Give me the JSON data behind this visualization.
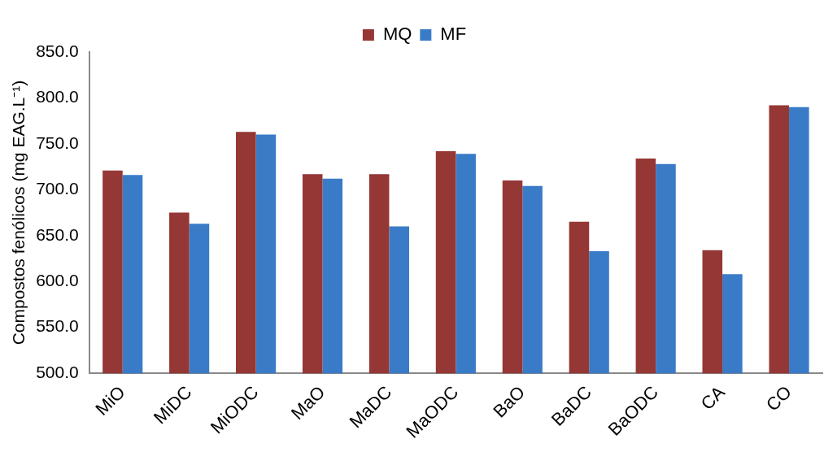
{
  "chart_data": {
    "type": "bar",
    "ylabel": "Compostos fenólicos (mg EAG.L⁻¹)",
    "categories": [
      "MiO",
      "MiDC",
      "MiODC",
      "MaO",
      "MaDC",
      "MaODC",
      "BaO",
      "BaDC",
      "BaODC",
      "CA",
      "CO"
    ],
    "series": [
      {
        "name": "MQ",
        "color": "#953735",
        "values": [
          721,
          675,
          763,
          717,
          717,
          742,
          710,
          665,
          734,
          634,
          792
        ]
      },
      {
        "name": "MF",
        "color": "#3a7bc8",
        "values": [
          716,
          663,
          760,
          712,
          660,
          739,
          704,
          633,
          728,
          608,
          790
        ]
      }
    ],
    "ylim": [
      500,
      850
    ],
    "yticks": [
      {
        "value": 500,
        "label": "500.0"
      },
      {
        "value": 550,
        "label": "550.0"
      },
      {
        "value": 600,
        "label": "600.0"
      },
      {
        "value": 650,
        "label": "650.0"
      },
      {
        "value": 700,
        "label": "700.0"
      },
      {
        "value": 750,
        "label": "750.0"
      },
      {
        "value": 800,
        "label": "800.0"
      },
      {
        "value": 850,
        "label": "850.0"
      }
    ],
    "grid": false,
    "legend": "top"
  }
}
